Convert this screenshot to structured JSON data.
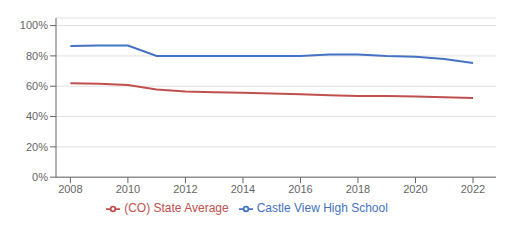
{
  "chart_data": {
    "type": "line",
    "x": [
      2008,
      2009,
      2010,
      2011,
      2012,
      2013,
      2014,
      2015,
      2016,
      2017,
      2018,
      2019,
      2020,
      2021,
      2022
    ],
    "series": [
      {
        "name": "Castle View High School",
        "color": "#4472C4",
        "values": [
          0.865,
          0.868,
          0.868,
          0.8,
          0.8,
          0.8,
          0.799,
          0.799,
          0.8,
          0.81,
          0.81,
          0.8,
          0.795,
          0.78,
          0.753
        ]
      },
      {
        "name": "(CO) State Average",
        "color": "#C0504D",
        "values": [
          0.62,
          0.617,
          0.608,
          0.578,
          0.565,
          0.56,
          0.557,
          0.552,
          0.547,
          0.54,
          0.535,
          0.535,
          0.532,
          0.527,
          0.523
        ]
      }
    ],
    "xlim": [
      2007.5,
      2022.8
    ],
    "xticks": [
      2008,
      2010,
      2012,
      2014,
      2016,
      2018,
      2020,
      2022
    ],
    "ylim": [
      0.0,
      1.05
    ],
    "yticks": [
      {
        "value": 0.0,
        "label": "0%"
      },
      {
        "value": 0.2,
        "label": "20%"
      },
      {
        "value": 0.4,
        "label": "40%"
      },
      {
        "value": 0.6,
        "label": "60%"
      },
      {
        "value": 0.8,
        "label": "80%"
      },
      {
        "value": 1.0,
        "label": "100%"
      }
    ],
    "grid": true,
    "legend": "bottom"
  }
}
